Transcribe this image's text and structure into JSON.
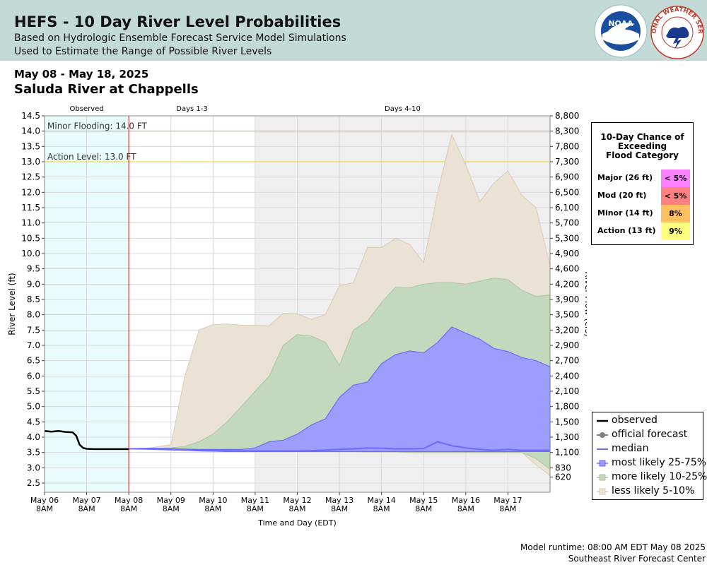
{
  "header": {
    "title": "HEFS - 10 Day River Level Probabilities",
    "subtitle1": "Based on Hydrologic Ensemble Forecast Service Model Simulations",
    "subtitle2": "Used to Estimate the Range of Possible River Levels",
    "noaa_logo_text": "NOAA",
    "nws_logo_text": "NATIONAL WEATHER SERVICE",
    "colors": {
      "background": "#c3dad6"
    }
  },
  "date_range": "May 08 - May 18, 2025",
  "site_name": "Saluda River at Chappells",
  "probability_table": {
    "title_lines": [
      "10-Day Chance of",
      "Exceeding",
      "Flood Category"
    ],
    "rows": [
      {
        "label": "Major (26 ft)",
        "value": "< 5%",
        "color": "#ff80ff"
      },
      {
        "label": "Mod (20 ft)",
        "value": "< 5%",
        "color": "#ff8080"
      },
      {
        "label": "Minor (14 ft)",
        "value": "8%",
        "color": "#ffc060"
      },
      {
        "label": "Action (13 ft)",
        "value": "9%",
        "color": "#ffff80"
      }
    ]
  },
  "legend": {
    "items": [
      {
        "label": "observed",
        "icon": "line-black",
        "color": "#000000"
      },
      {
        "label": "official forecast",
        "icon": "line-dot-gray",
        "color": "#808080"
      },
      {
        "label": "median",
        "icon": "line-blue",
        "color": "#6b6bff"
      },
      {
        "label": "most likely 25-75%",
        "icon": "swatch-blue",
        "color": "#9a9aff"
      },
      {
        "label": "more likely 10-25%",
        "icon": "swatch-green",
        "color": "#c3d9bd"
      },
      {
        "label": "less likely 5-10%",
        "icon": "swatch-beige",
        "color": "#ebe2d6"
      }
    ]
  },
  "footer": {
    "runtime": "Model runtime: 08:00 AM EDT May 08 2025",
    "center": "Southeast River Forecast Center"
  },
  "chart_data": {
    "type": "area",
    "xlabel": "Time and Day (EDT)",
    "ylabel": "River Level (ft)",
    "y2label": "River Flow (cfs)",
    "ylim": [
      2.2,
      14.5
    ],
    "xlim": [
      "2025-05-06 08:00",
      "2025-05-18 08:00"
    ],
    "grid": true,
    "legend_position": "bottom-right",
    "period_labels": [
      {
        "label": "Observed",
        "start": "2025-05-06 08:00",
        "end": "2025-05-08 08:00"
      },
      {
        "label": "Days 1-3",
        "start": "2025-05-08 08:00",
        "end": "2025-05-11 08:00"
      },
      {
        "label": "Days 4-10",
        "start": "2025-05-11 08:00",
        "end": "2025-05-18 08:00"
      }
    ],
    "y_ticks": [
      2.5,
      3.0,
      3.5,
      4.0,
      4.5,
      5.0,
      5.5,
      6.0,
      6.5,
      7.0,
      7.5,
      8.0,
      8.5,
      9.0,
      9.5,
      10.0,
      10.5,
      11.0,
      11.5,
      12.0,
      12.5,
      13.0,
      13.5,
      14.0,
      14.5
    ],
    "y_tick_labels": [
      "2.5",
      "3.0",
      "3.5",
      "4.0",
      "4.5",
      "5.0",
      "5.5",
      "6.0",
      "6.5",
      "7.0",
      "7.5",
      "8.0",
      "8.5",
      "9.0",
      "9.5",
      "10.0",
      "10.5",
      "11.0",
      "11.5",
      "12.0",
      "12.5",
      "13.0",
      "13.5",
      "14.0",
      "14.5"
    ],
    "y2_ticks": [
      {
        "stage": 2.7,
        "label": "620"
      },
      {
        "stage": 3.0,
        "label": "830"
      },
      {
        "stage": 3.5,
        "label": "1,100"
      },
      {
        "stage": 4.0,
        "label": "1,300"
      },
      {
        "stage": 4.5,
        "label": "1,500"
      },
      {
        "stage": 5.0,
        "label": "1,800"
      },
      {
        "stage": 5.5,
        "label": "2,100"
      },
      {
        "stage": 6.0,
        "label": "2,400"
      },
      {
        "stage": 6.5,
        "label": "2,700"
      },
      {
        "stage": 7.0,
        "label": "2,900"
      },
      {
        "stage": 7.5,
        "label": "3,200"
      },
      {
        "stage": 8.0,
        "label": "3,500"
      },
      {
        "stage": 8.5,
        "label": "3,900"
      },
      {
        "stage": 9.0,
        "label": "4,200"
      },
      {
        "stage": 9.5,
        "label": "4,600"
      },
      {
        "stage": 10.0,
        "label": "4,900"
      },
      {
        "stage": 10.5,
        "label": "5,300"
      },
      {
        "stage": 11.0,
        "label": "5,700"
      },
      {
        "stage": 11.5,
        "label": "6,100"
      },
      {
        "stage": 12.0,
        "label": "6,500"
      },
      {
        "stage": 12.5,
        "label": "6,900"
      },
      {
        "stage": 13.0,
        "label": "7,300"
      },
      {
        "stage": 13.5,
        "label": "7,800"
      },
      {
        "stage": 14.0,
        "label": "8,300"
      },
      {
        "stage": 14.5,
        "label": "8,800"
      }
    ],
    "x_ticks": [
      {
        "time": "2025-05-06 08:00",
        "line1": "May 06",
        "line2": "8AM"
      },
      {
        "time": "2025-05-07 08:00",
        "line1": "May 07",
        "line2": "8AM"
      },
      {
        "time": "2025-05-08 08:00",
        "line1": "May 08",
        "line2": "8AM"
      },
      {
        "time": "2025-05-09 08:00",
        "line1": "May 09",
        "line2": "8AM"
      },
      {
        "time": "2025-05-10 08:00",
        "line1": "May 10",
        "line2": "8AM"
      },
      {
        "time": "2025-05-11 08:00",
        "line1": "May 11",
        "line2": "8AM"
      },
      {
        "time": "2025-05-12 08:00",
        "line1": "May 12",
        "line2": "8AM"
      },
      {
        "time": "2025-05-13 08:00",
        "line1": "May 13",
        "line2": "8AM"
      },
      {
        "time": "2025-05-14 08:00",
        "line1": "May 14",
        "line2": "8AM"
      },
      {
        "time": "2025-05-15 08:00",
        "line1": "May 15",
        "line2": "8AM"
      },
      {
        "time": "2025-05-16 08:00",
        "line1": "May 16",
        "line2": "8AM"
      },
      {
        "time": "2025-05-17 08:00",
        "line1": "May 17",
        "line2": "8AM"
      }
    ],
    "thresholds": [
      {
        "label": "Minor Flooding: 14.0 FT",
        "value": 14.0,
        "color": "#f0a040"
      },
      {
        "label": "Action Level: 13.0 FT",
        "value": 13.0,
        "color": "#f0d020"
      }
    ],
    "forecast_issue_time": "2025-05-08 08:00",
    "observed": {
      "x": [
        "2025-05-06 08:00",
        "2025-05-06 12:00",
        "2025-05-06 16:00",
        "2025-05-06 20:00",
        "2025-05-07 00:00",
        "2025-05-07 02:00",
        "2025-05-07 04:00",
        "2025-05-07 06:00",
        "2025-05-07 08:00",
        "2025-05-07 12:00",
        "2025-05-08 00:00",
        "2025-05-08 08:00"
      ],
      "y": [
        4.2,
        4.18,
        4.2,
        4.17,
        4.16,
        4.05,
        3.75,
        3.65,
        3.62,
        3.61,
        3.61,
        3.61
      ]
    },
    "series": [
      {
        "name": "less likely 5-10%",
        "x": [
          "2025-05-08 08:00",
          "2025-05-08 20:00",
          "2025-05-09 08:00",
          "2025-05-09 16:00",
          "2025-05-10 00:00",
          "2025-05-10 08:00",
          "2025-05-10 16:00",
          "2025-05-11 00:00",
          "2025-05-11 08:00",
          "2025-05-11 16:00",
          "2025-05-12 00:00",
          "2025-05-12 08:00",
          "2025-05-12 16:00",
          "2025-05-13 00:00",
          "2025-05-13 08:00",
          "2025-05-13 16:00",
          "2025-05-14 00:00",
          "2025-05-14 08:00",
          "2025-05-14 16:00",
          "2025-05-15 00:00",
          "2025-05-15 08:00",
          "2025-05-15 16:00",
          "2025-05-16 00:00",
          "2025-05-16 08:00",
          "2025-05-16 16:00",
          "2025-05-17 00:00",
          "2025-05-17 08:00",
          "2025-05-17 16:00",
          "2025-05-18 00:00",
          "2025-05-18 08:00"
        ],
        "upper": [
          3.62,
          3.65,
          3.75,
          6.0,
          7.5,
          7.68,
          7.7,
          7.66,
          7.65,
          7.64,
          8.05,
          8.03,
          7.85,
          8.0,
          8.95,
          9.05,
          10.2,
          10.2,
          10.5,
          10.3,
          9.7,
          12.0,
          13.9,
          12.9,
          11.7,
          12.3,
          12.7,
          11.9,
          11.5,
          9.6
        ],
        "lower": [
          3.62,
          3.62,
          3.6,
          3.58,
          3.55,
          3.54,
          3.53,
          3.53,
          3.53,
          3.53,
          3.53,
          3.53,
          3.53,
          3.53,
          3.53,
          3.53,
          3.52,
          3.52,
          3.52,
          3.5,
          3.5,
          3.5,
          3.5,
          3.5,
          3.5,
          3.5,
          3.5,
          3.5,
          3.1,
          2.75
        ],
        "color": "#ebe2d6"
      },
      {
        "name": "more likely 10-25%",
        "x": [
          "2025-05-08 08:00",
          "2025-05-08 20:00",
          "2025-05-09 08:00",
          "2025-05-09 16:00",
          "2025-05-10 00:00",
          "2025-05-10 08:00",
          "2025-05-10 16:00",
          "2025-05-11 00:00",
          "2025-05-11 08:00",
          "2025-05-11 16:00",
          "2025-05-12 00:00",
          "2025-05-12 08:00",
          "2025-05-12 16:00",
          "2025-05-13 00:00",
          "2025-05-13 08:00",
          "2025-05-13 16:00",
          "2025-05-14 00:00",
          "2025-05-14 08:00",
          "2025-05-14 16:00",
          "2025-05-15 00:00",
          "2025-05-15 08:00",
          "2025-05-15 16:00",
          "2025-05-16 00:00",
          "2025-05-16 08:00",
          "2025-05-16 16:00",
          "2025-05-17 00:00",
          "2025-05-17 08:00",
          "2025-05-17 16:00",
          "2025-05-18 00:00",
          "2025-05-18 08:00"
        ],
        "upper": [
          3.62,
          3.63,
          3.65,
          3.7,
          3.85,
          4.1,
          4.5,
          5.0,
          5.5,
          6.0,
          7.0,
          7.35,
          7.3,
          7.1,
          6.35,
          7.5,
          7.8,
          8.4,
          8.9,
          8.88,
          9.0,
          9.05,
          9.05,
          9.0,
          9.1,
          9.2,
          9.15,
          8.8,
          8.6,
          8.65
        ],
        "lower": [
          3.62,
          3.62,
          3.6,
          3.58,
          3.55,
          3.54,
          3.53,
          3.53,
          3.53,
          3.53,
          3.53,
          3.53,
          3.53,
          3.53,
          3.53,
          3.53,
          3.52,
          3.52,
          3.52,
          3.5,
          3.5,
          3.5,
          3.5,
          3.5,
          3.5,
          3.5,
          3.5,
          3.5,
          3.3,
          2.95
        ],
        "color": "#c3d9bd"
      },
      {
        "name": "most likely 25-75%",
        "x": [
          "2025-05-08 08:00",
          "2025-05-08 20:00",
          "2025-05-09 08:00",
          "2025-05-09 16:00",
          "2025-05-10 00:00",
          "2025-05-10 08:00",
          "2025-05-10 16:00",
          "2025-05-11 00:00",
          "2025-05-11 08:00",
          "2025-05-11 16:00",
          "2025-05-12 00:00",
          "2025-05-12 08:00",
          "2025-05-12 16:00",
          "2025-05-13 00:00",
          "2025-05-13 08:00",
          "2025-05-13 16:00",
          "2025-05-14 00:00",
          "2025-05-14 08:00",
          "2025-05-14 16:00",
          "2025-05-15 00:00",
          "2025-05-15 08:00",
          "2025-05-15 16:00",
          "2025-05-16 00:00",
          "2025-05-16 08:00",
          "2025-05-16 16:00",
          "2025-05-17 00:00",
          "2025-05-17 08:00",
          "2025-05-17 16:00",
          "2025-05-18 00:00",
          "2025-05-18 08:00"
        ],
        "upper": [
          3.62,
          3.63,
          3.62,
          3.61,
          3.6,
          3.6,
          3.6,
          3.6,
          3.65,
          3.85,
          3.9,
          4.1,
          4.4,
          4.6,
          5.3,
          5.7,
          5.8,
          6.4,
          6.7,
          6.82,
          6.75,
          7.1,
          7.6,
          7.4,
          7.2,
          6.9,
          6.8,
          6.6,
          6.5,
          6.3
        ],
        "lower": [
          3.62,
          3.6,
          3.58,
          3.57,
          3.55,
          3.54,
          3.53,
          3.53,
          3.53,
          3.53,
          3.53,
          3.53,
          3.53,
          3.53,
          3.53,
          3.53,
          3.53,
          3.53,
          3.53,
          3.53,
          3.53,
          3.53,
          3.53,
          3.53,
          3.53,
          3.53,
          3.53,
          3.53,
          3.53,
          3.53
        ],
        "color": "#9a9aff"
      },
      {
        "name": "median",
        "x": [
          "2025-05-08 08:00",
          "2025-05-08 20:00",
          "2025-05-09 08:00",
          "2025-05-09 16:00",
          "2025-05-10 00:00",
          "2025-05-10 08:00",
          "2025-05-10 16:00",
          "2025-05-11 00:00",
          "2025-05-11 08:00",
          "2025-05-11 16:00",
          "2025-05-12 00:00",
          "2025-05-12 08:00",
          "2025-05-12 16:00",
          "2025-05-13 00:00",
          "2025-05-13 08:00",
          "2025-05-13 16:00",
          "2025-05-14 00:00",
          "2025-05-14 08:00",
          "2025-05-14 16:00",
          "2025-05-15 00:00",
          "2025-05-15 08:00",
          "2025-05-15 16:00",
          "2025-05-16 00:00",
          "2025-05-16 08:00",
          "2025-05-16 16:00",
          "2025-05-17 00:00",
          "2025-05-17 08:00",
          "2025-05-17 16:00",
          "2025-05-18 00:00",
          "2025-05-18 08:00"
        ],
        "y": [
          3.62,
          3.63,
          3.62,
          3.6,
          3.58,
          3.57,
          3.56,
          3.55,
          3.55,
          3.55,
          3.55,
          3.55,
          3.56,
          3.58,
          3.6,
          3.62,
          3.65,
          3.64,
          3.62,
          3.62,
          3.63,
          3.85,
          3.72,
          3.65,
          3.6,
          3.57,
          3.6,
          3.57,
          3.57,
          3.57
        ],
        "color": "#6b6bff"
      }
    ]
  }
}
